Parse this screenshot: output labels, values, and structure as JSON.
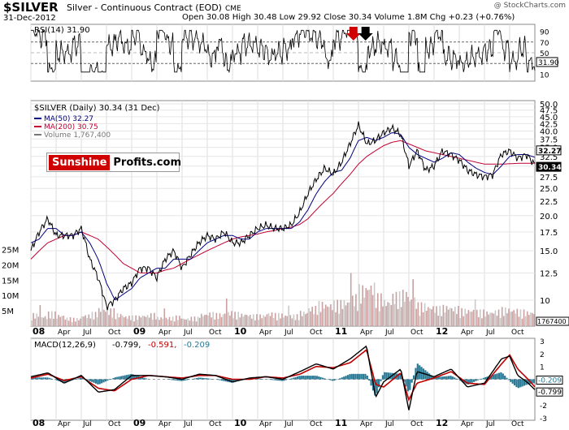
{
  "header": {
    "symbol": "$SILVER",
    "name": "Silver - Continuous Contract (EOD)",
    "exchange": "CME",
    "date": "31-Dec-2012",
    "stats": "Open 30.08  High 30.48  Low 29.92  Close 30.34  Volume 1.8M  Chg +0.23 (+0.76%)",
    "brand": "@ StockCharts.com"
  },
  "chart_data": [
    {
      "type": "line",
      "panel": "rsi",
      "title": "RSI(14) 31.90",
      "last": "31.90",
      "ylim": [
        0,
        100
      ],
      "yticks": [
        "10",
        "30",
        "50",
        "70",
        "90"
      ],
      "guide_levels": [
        30,
        70
      ],
      "markers": [
        {
          "x": 2011.2,
          "color": "#d00000"
        },
        {
          "x": 2011.32,
          "color": "#000000"
        }
      ]
    },
    {
      "type": "line",
      "panel": "price",
      "title": "$SILVER (Daily) 30.34 (31 Dec)",
      "legend": [
        "MA(50) 32.27",
        "MA(200) 30.75",
        "Volume 1,767,400"
      ],
      "scale": "log",
      "ylim": [
        10,
        50
      ],
      "yticks": [
        "10",
        "12.5",
        "15.0",
        "17.5",
        "20.0",
        "22.5",
        "25.0",
        "27.5",
        "30.0",
        "32.5",
        "35.0",
        "37.5",
        "40.0",
        "42.5",
        "45.0",
        "47.5",
        "50.0"
      ],
      "last_labels": [
        "32.27",
        "30.34"
      ],
      "colors": {
        "price": "#000000",
        "ma50": "#000080",
        "ma200": "#c00030",
        "volume": "#c8a0a0"
      },
      "x": [
        2008.0,
        2008.08,
        2008.17,
        2008.25,
        2008.33,
        2008.42,
        2008.5,
        2008.58,
        2008.67,
        2008.75,
        2008.83,
        2008.92,
        2009.0,
        2009.08,
        2009.17,
        2009.25,
        2009.33,
        2009.42,
        2009.5,
        2009.58,
        2009.67,
        2009.75,
        2009.83,
        2009.92,
        2010.0,
        2010.08,
        2010.17,
        2010.25,
        2010.33,
        2010.42,
        2010.5,
        2010.58,
        2010.67,
        2010.75,
        2010.83,
        2010.92,
        2011.0,
        2011.08,
        2011.17,
        2011.25,
        2011.33,
        2011.42,
        2011.5,
        2011.58,
        2011.67,
        2011.75,
        2011.83,
        2011.92,
        2012.0,
        2012.08,
        2012.17,
        2012.25,
        2012.33,
        2012.42,
        2012.5,
        2012.58,
        2012.67,
        2012.75,
        2012.83,
        2012.92,
        2013.0
      ],
      "price": [
        15.0,
        17.5,
        19.5,
        17.0,
        17.0,
        17.0,
        18.0,
        14.0,
        12.0,
        9.5,
        10.0,
        11.0,
        11.5,
        13.0,
        13.0,
        12.0,
        14.0,
        15.0,
        13.0,
        14.5,
        16.0,
        17.0,
        16.5,
        17.5,
        16.0,
        16.0,
        17.0,
        18.0,
        18.5,
        18.0,
        18.0,
        18.5,
        20.5,
        24.0,
        27.0,
        29.5,
        28.0,
        31.0,
        36.0,
        42.0,
        36.0,
        37.0,
        39.5,
        41.0,
        39.0,
        30.0,
        34.0,
        29.0,
        30.0,
        34.0,
        33.0,
        31.5,
        29.0,
        28.0,
        27.5,
        28.0,
        33.0,
        34.0,
        32.0,
        33.0,
        30.34
      ],
      "ma50": [
        16.0,
        16.5,
        18.0,
        18.0,
        17.0,
        17.0,
        17.5,
        16.0,
        14.0,
        11.5,
        10.0,
        10.5,
        11.0,
        12.0,
        12.5,
        13.0,
        13.0,
        14.0,
        14.0,
        14.0,
        15.0,
        16.0,
        16.5,
        17.0,
        17.0,
        16.5,
        16.5,
        17.5,
        18.0,
        18.0,
        18.0,
        18.0,
        19.0,
        21.0,
        24.0,
        26.5,
        28.5,
        29.0,
        32.0,
        37.0,
        38.0,
        37.0,
        38.0,
        39.5,
        39.0,
        35.0,
        33.0,
        32.0,
        31.0,
        32.0,
        33.5,
        33.0,
        31.0,
        29.5,
        28.5,
        28.0,
        30.0,
        32.5,
        33.0,
        33.0,
        32.27
      ],
      "ma200": [
        14.0,
        15.0,
        16.0,
        16.5,
        17.0,
        17.0,
        17.5,
        17.0,
        16.5,
        15.5,
        14.5,
        13.5,
        13.0,
        12.5,
        12.5,
        12.5,
        12.8,
        13.0,
        13.5,
        14.0,
        14.5,
        15.0,
        15.5,
        16.0,
        16.5,
        16.8,
        17.0,
        17.2,
        17.5,
        17.7,
        18.0,
        18.2,
        18.6,
        19.5,
        21.0,
        22.5,
        24.0,
        26.0,
        28.0,
        30.5,
        32.5,
        34.0,
        35.5,
        36.5,
        37.0,
        36.0,
        35.0,
        34.0,
        33.5,
        33.0,
        32.5,
        32.0,
        31.5,
        31.0,
        30.5,
        30.5,
        30.5,
        30.6,
        30.7,
        30.7,
        30.75
      ],
      "volume": [
        2.2,
        1.8,
        2.5,
        2.0,
        1.5,
        1.4,
        2.0,
        2.4,
        3.2,
        3.0,
        2.2,
        1.8,
        1.8,
        2.0,
        2.2,
        1.6,
        1.6,
        1.8,
        1.4,
        1.6,
        2.2,
        2.4,
        2.2,
        2.6,
        2.4,
        2.2,
        2.0,
        2.0,
        2.4,
        2.2,
        2.0,
        2.0,
        2.6,
        3.4,
        4.2,
        4.0,
        4.4,
        4.6,
        5.4,
        7.0,
        7.5,
        5.5,
        4.6,
        5.8,
        6.2,
        5.0,
        4.0,
        3.6,
        3.4,
        3.6,
        3.4,
        3.0,
        3.0,
        2.8,
        2.6,
        2.8,
        3.2,
        3.0,
        2.8,
        2.6,
        1.8
      ],
      "volume_ticks": [
        "25M",
        "20M",
        "15M",
        "10M",
        "5M"
      ],
      "volume_last": "1767400"
    },
    {
      "type": "line",
      "panel": "macd",
      "title": "MACD(12,26,9) -0.799, -0.591, -0.209",
      "title_parts": [
        "MACD(12,26,9)",
        "-0.799,",
        "-0.591,",
        "-0.209"
      ],
      "ylim": [
        -3,
        3
      ],
      "yticks": [
        "3",
        "2",
        "1",
        "0",
        "-1",
        "-2",
        "-3"
      ],
      "last_labels": [
        "-0.209",
        "-0.799"
      ],
      "colors": {
        "macd": "#000000",
        "signal": "#c00000",
        "histogram": "#2b7a96"
      },
      "x": [
        2008.0,
        2008.17,
        2008.33,
        2008.5,
        2008.67,
        2008.83,
        2009.0,
        2009.17,
        2009.33,
        2009.5,
        2009.67,
        2009.83,
        2010.0,
        2010.17,
        2010.33,
        2010.5,
        2010.67,
        2010.83,
        2011.0,
        2011.17,
        2011.33,
        2011.42,
        2011.5,
        2011.67,
        2011.75,
        2011.83,
        2012.0,
        2012.17,
        2012.33,
        2012.5,
        2012.67,
        2012.75,
        2012.83,
        2012.92,
        2013.0
      ],
      "macd": [
        0.2,
        0.5,
        -0.3,
        0.3,
        -1.0,
        -0.8,
        0.3,
        0.3,
        0.2,
        0.0,
        0.4,
        0.3,
        -0.2,
        0.1,
        0.2,
        0.0,
        0.6,
        1.2,
        0.8,
        1.6,
        2.6,
        -1.4,
        -0.2,
        0.8,
        -2.4,
        0.6,
        0.2,
        0.8,
        -0.6,
        -0.3,
        1.6,
        1.8,
        0.3,
        -0.2,
        -0.799
      ],
      "signal": [
        0.1,
        0.4,
        -0.1,
        0.2,
        -0.7,
        -0.9,
        0.0,
        0.3,
        0.2,
        0.1,
        0.3,
        0.3,
        0.0,
        0.0,
        0.2,
        0.1,
        0.4,
        1.0,
        0.9,
        1.3,
        2.3,
        -0.4,
        -0.6,
        0.5,
        -1.6,
        -0.3,
        0.1,
        0.6,
        -0.3,
        -0.4,
        1.2,
        1.9,
        0.8,
        0.1,
        -0.591
      ]
    }
  ],
  "x_axis": {
    "labels": [
      "08",
      "Apr",
      "Jul",
      "Oct",
      "09",
      "Apr",
      "Jul",
      "Oct",
      "10",
      "Apr",
      "Jul",
      "Oct",
      "11",
      "Apr",
      "Jul",
      "Oct",
      "12",
      "Apr",
      "Jul",
      "Oct"
    ]
  },
  "watermark": {
    "part1": "Sunshine",
    "part2": "Profits.com"
  }
}
